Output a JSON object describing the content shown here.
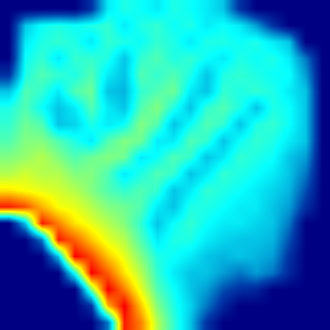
{
  "chart_data": {
    "type": "heatmap",
    "tick_labels": false,
    "zlim": [
      0,
      1
    ],
    "z": [
      [
        0,
        0,
        0,
        0,
        0,
        0.1,
        0.35,
        0.4,
        0.38,
        0.35,
        0.4,
        0.38,
        0.35,
        0.3,
        0.1,
        0,
        0,
        0,
        0,
        0
      ],
      [
        0,
        0.3,
        0.38,
        0.4,
        0.38,
        0.4,
        0.42,
        0.35,
        0.4,
        0.42,
        0.38,
        0.4,
        0.35,
        0.38,
        0.35,
        0.25,
        0.1,
        0,
        0,
        0
      ],
      [
        0,
        0.35,
        0.4,
        0.42,
        0.4,
        0.35,
        0.42,
        0.4,
        0.38,
        0.42,
        0.4,
        0.35,
        0.4,
        0.4,
        0.38,
        0.4,
        0.35,
        0.3,
        0,
        0
      ],
      [
        0,
        0.38,
        0.42,
        0.35,
        0.42,
        0.42,
        0.4,
        0.3,
        0.42,
        0.45,
        0.4,
        0.42,
        0.38,
        0.35,
        0.4,
        0.38,
        0.4,
        0.35,
        0.2,
        0
      ],
      [
        0.1,
        0.4,
        0.45,
        0.42,
        0.4,
        0.45,
        0.35,
        0.3,
        0.45,
        0.42,
        0.45,
        0.4,
        0.3,
        0.4,
        0.42,
        0.4,
        0.38,
        0.38,
        0.25,
        0
      ],
      [
        0.3,
        0.45,
        0.42,
        0.35,
        0.45,
        0.48,
        0.3,
        0.28,
        0.42,
        0.45,
        0.48,
        0.35,
        0.3,
        0.42,
        0.4,
        0.42,
        0.4,
        0.35,
        0.3,
        0
      ],
      [
        0.4,
        0.45,
        0.38,
        0.3,
        0.35,
        0.45,
        0.35,
        0.3,
        0.45,
        0.5,
        0.4,
        0.3,
        0.42,
        0.45,
        0.4,
        0.3,
        0.4,
        0.38,
        0.3,
        0
      ],
      [
        0.42,
        0.48,
        0.45,
        0.3,
        0.32,
        0.4,
        0.35,
        0.38,
        0.5,
        0.45,
        0.3,
        0.38,
        0.45,
        0.42,
        0.3,
        0.4,
        0.42,
        0.38,
        0.3,
        0
      ],
      [
        0.45,
        0.5,
        0.5,
        0.45,
        0.4,
        0.35,
        0.45,
        0.5,
        0.48,
        0.35,
        0.35,
        0.45,
        0.42,
        0.3,
        0.38,
        0.42,
        0.4,
        0.35,
        0.3,
        0
      ],
      [
        0.5,
        0.52,
        0.55,
        0.5,
        0.45,
        0.48,
        0.5,
        0.48,
        0.35,
        0.38,
        0.45,
        0.42,
        0.3,
        0.35,
        0.42,
        0.4,
        0.38,
        0.3,
        0.25,
        0
      ],
      [
        0.55,
        0.58,
        0.55,
        0.55,
        0.5,
        0.5,
        0.45,
        0.35,
        0.4,
        0.45,
        0.42,
        0.3,
        0.35,
        0.42,
        0.4,
        0.38,
        0.35,
        0.3,
        0.2,
        0
      ],
      [
        0.65,
        0.62,
        0.6,
        0.58,
        0.55,
        0.5,
        0.45,
        0.42,
        0.45,
        0.42,
        0.3,
        0.35,
        0.42,
        0.4,
        0.38,
        0.35,
        0.32,
        0.28,
        0.15,
        0
      ],
      [
        0.85,
        0.8,
        0.7,
        0.62,
        0.6,
        0.55,
        0.5,
        0.48,
        0.45,
        0.35,
        0.3,
        0.4,
        0.4,
        0.38,
        0.35,
        0.35,
        0.3,
        0.25,
        0.1,
        0
      ],
      [
        0,
        0.3,
        0.85,
        0.75,
        0.65,
        0.6,
        0.55,
        0.5,
        0.42,
        0.3,
        0.38,
        0.42,
        0.38,
        0.35,
        0.35,
        0.32,
        0.3,
        0.2,
        0,
        0
      ],
      [
        0,
        0,
        0.2,
        0.85,
        0.78,
        0.68,
        0.6,
        0.55,
        0.45,
        0.35,
        0.4,
        0.4,
        0.35,
        0.32,
        0.3,
        0.3,
        0.28,
        0.15,
        0,
        0
      ],
      [
        0,
        0,
        0,
        0.3,
        0.88,
        0.8,
        0.68,
        0.6,
        0.5,
        0.4,
        0.38,
        0.35,
        0.3,
        0.28,
        0.3,
        0.28,
        0.25,
        0.1,
        0,
        0
      ],
      [
        0,
        0,
        0,
        0,
        0.4,
        0.88,
        0.78,
        0.65,
        0.55,
        0.42,
        0.35,
        0.3,
        0.3,
        0.25,
        0.2,
        0.25,
        0.2,
        0.08,
        0,
        0
      ],
      [
        0,
        0,
        0,
        0,
        0,
        0.5,
        0.88,
        0.75,
        0.6,
        0.45,
        0.38,
        0.3,
        0.25,
        0.15,
        0.1,
        0.08,
        0,
        0,
        0,
        0
      ],
      [
        0,
        0,
        0,
        0,
        0,
        0.1,
        0.7,
        0.88,
        0.68,
        0.5,
        0.4,
        0.32,
        0.2,
        0.08,
        0,
        0,
        0,
        0,
        0,
        0
      ],
      [
        0,
        0,
        0,
        0,
        0,
        0,
        0.2,
        0.85,
        0.75,
        0.55,
        0.42,
        0.3,
        0.1,
        0,
        0,
        0,
        0,
        0,
        0,
        0
      ]
    ]
  }
}
